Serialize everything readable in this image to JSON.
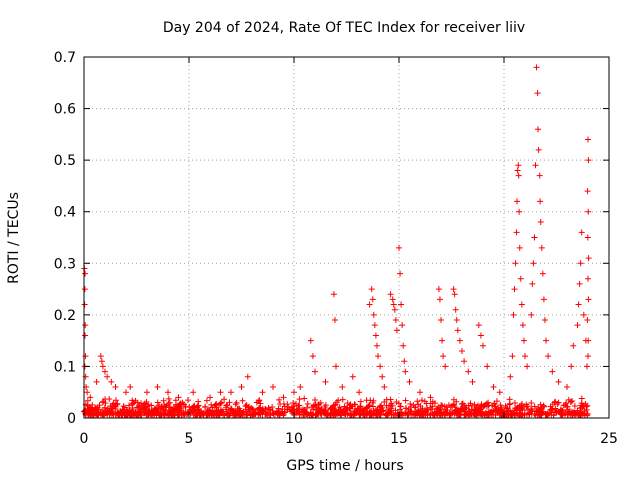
{
  "chart_data": {
    "type": "scatter",
    "title": "Day 204 of 2024, Rate Of TEC Index for receiver liiv",
    "xlabel": "GPS time / hours",
    "ylabel": "ROTI / TECUs",
    "xlim": [
      0,
      25
    ],
    "ylim": [
      0,
      0.7
    ],
    "xticks": [
      0,
      5,
      10,
      15,
      20,
      25
    ],
    "xtick_labels": [
      "0",
      "5",
      "10",
      "15",
      "20",
      "25"
    ],
    "yticks": [
      0,
      0.1,
      0.2,
      0.3,
      0.4,
      0.5,
      0.6,
      0.7
    ],
    "ytick_labels": [
      "0",
      "0.1",
      "0.2",
      "0.3",
      "0.4",
      "0.5",
      "0.6",
      "0.7"
    ],
    "grid": true,
    "marker": "+",
    "color": "#ff0000",
    "baseline": {
      "x_range": [
        0,
        24
      ],
      "y_range": [
        0.005,
        0.04
      ],
      "note": "dense background band of points"
    },
    "series": [
      {
        "name": "ROTI",
        "points": [
          [
            0.02,
            0.29
          ],
          [
            0.05,
            0.28
          ],
          [
            0.04,
            0.25
          ],
          [
            0.03,
            0.22
          ],
          [
            0.06,
            0.18
          ],
          [
            0.05,
            0.16
          ],
          [
            0.07,
            0.12
          ],
          [
            0.04,
            0.1
          ],
          [
            0.08,
            0.08
          ],
          [
            0.1,
            0.06
          ],
          [
            0.15,
            0.05
          ],
          [
            0.3,
            0.04
          ],
          [
            0.6,
            0.07
          ],
          [
            0.8,
            0.12
          ],
          [
            0.85,
            0.11
          ],
          [
            0.9,
            0.1
          ],
          [
            1.0,
            0.09
          ],
          [
            1.1,
            0.08
          ],
          [
            1.3,
            0.07
          ],
          [
            1.5,
            0.06
          ],
          [
            2.0,
            0.05
          ],
          [
            2.2,
            0.06
          ],
          [
            3.0,
            0.05
          ],
          [
            3.5,
            0.06
          ],
          [
            4.0,
            0.05
          ],
          [
            4.5,
            0.04
          ],
          [
            5.2,
            0.05
          ],
          [
            6.0,
            0.04
          ],
          [
            6.5,
            0.05
          ],
          [
            7.0,
            0.05
          ],
          [
            7.5,
            0.06
          ],
          [
            7.8,
            0.08
          ],
          [
            8.5,
            0.05
          ],
          [
            9.0,
            0.06
          ],
          [
            9.5,
            0.04
          ],
          [
            10.0,
            0.05
          ],
          [
            10.3,
            0.06
          ],
          [
            10.8,
            0.15
          ],
          [
            10.9,
            0.12
          ],
          [
            11.0,
            0.09
          ],
          [
            11.5,
            0.07
          ],
          [
            11.9,
            0.24
          ],
          [
            11.95,
            0.19
          ],
          [
            12.0,
            0.1
          ],
          [
            12.3,
            0.06
          ],
          [
            12.8,
            0.08
          ],
          [
            13.1,
            0.05
          ],
          [
            13.6,
            0.22
          ],
          [
            13.7,
            0.25
          ],
          [
            13.75,
            0.23
          ],
          [
            13.8,
            0.2
          ],
          [
            13.85,
            0.18
          ],
          [
            13.9,
            0.16
          ],
          [
            13.95,
            0.14
          ],
          [
            14.0,
            0.12
          ],
          [
            14.1,
            0.1
          ],
          [
            14.2,
            0.08
          ],
          [
            14.3,
            0.06
          ],
          [
            14.6,
            0.24
          ],
          [
            14.7,
            0.23
          ],
          [
            14.75,
            0.22
          ],
          [
            14.8,
            0.21
          ],
          [
            14.85,
            0.19
          ],
          [
            14.9,
            0.17
          ],
          [
            15.0,
            0.33
          ],
          [
            15.05,
            0.28
          ],
          [
            15.1,
            0.22
          ],
          [
            15.15,
            0.18
          ],
          [
            15.2,
            0.14
          ],
          [
            15.25,
            0.11
          ],
          [
            15.3,
            0.09
          ],
          [
            15.5,
            0.07
          ],
          [
            16.0,
            0.05
          ],
          [
            16.5,
            0.04
          ],
          [
            16.9,
            0.25
          ],
          [
            16.95,
            0.23
          ],
          [
            17.0,
            0.19
          ],
          [
            17.05,
            0.15
          ],
          [
            17.1,
            0.12
          ],
          [
            17.2,
            0.1
          ],
          [
            17.6,
            0.25
          ],
          [
            17.65,
            0.24
          ],
          [
            17.7,
            0.21
          ],
          [
            17.75,
            0.19
          ],
          [
            17.8,
            0.17
          ],
          [
            17.9,
            0.15
          ],
          [
            18.0,
            0.13
          ],
          [
            18.1,
            0.11
          ],
          [
            18.3,
            0.09
          ],
          [
            18.5,
            0.07
          ],
          [
            18.8,
            0.18
          ],
          [
            18.9,
            0.16
          ],
          [
            19.0,
            0.14
          ],
          [
            19.2,
            0.1
          ],
          [
            19.5,
            0.06
          ],
          [
            19.8,
            0.05
          ],
          [
            20.3,
            0.08
          ],
          [
            20.4,
            0.12
          ],
          [
            20.45,
            0.2
          ],
          [
            20.5,
            0.25
          ],
          [
            20.55,
            0.3
          ],
          [
            20.6,
            0.36
          ],
          [
            20.62,
            0.42
          ],
          [
            20.65,
            0.48
          ],
          [
            20.68,
            0.49
          ],
          [
            20.7,
            0.47
          ],
          [
            20.72,
            0.4
          ],
          [
            20.75,
            0.33
          ],
          [
            20.8,
            0.27
          ],
          [
            20.85,
            0.22
          ],
          [
            20.9,
            0.18
          ],
          [
            20.95,
            0.15
          ],
          [
            21.0,
            0.12
          ],
          [
            21.1,
            0.1
          ],
          [
            21.3,
            0.2
          ],
          [
            21.35,
            0.26
          ],
          [
            21.4,
            0.3
          ],
          [
            21.45,
            0.35
          ],
          [
            21.5,
            0.49
          ],
          [
            21.55,
            0.68
          ],
          [
            21.6,
            0.63
          ],
          [
            21.62,
            0.56
          ],
          [
            21.65,
            0.52
          ],
          [
            21.7,
            0.47
          ],
          [
            21.72,
            0.42
          ],
          [
            21.75,
            0.38
          ],
          [
            21.8,
            0.33
          ],
          [
            21.85,
            0.28
          ],
          [
            21.9,
            0.23
          ],
          [
            21.95,
            0.19
          ],
          [
            22.0,
            0.15
          ],
          [
            22.1,
            0.12
          ],
          [
            22.3,
            0.09
          ],
          [
            22.6,
            0.07
          ],
          [
            23.0,
            0.06
          ],
          [
            23.2,
            0.1
          ],
          [
            23.3,
            0.14
          ],
          [
            23.5,
            0.18
          ],
          [
            23.55,
            0.22
          ],
          [
            23.6,
            0.26
          ],
          [
            23.65,
            0.3
          ],
          [
            23.7,
            0.36
          ],
          [
            23.8,
            0.2
          ],
          [
            23.9,
            0.15
          ],
          [
            24.0,
            0.54
          ],
          [
            24.02,
            0.5
          ],
          [
            23.98,
            0.44
          ],
          [
            24.01,
            0.4
          ],
          [
            23.99,
            0.35
          ],
          [
            24.03,
            0.31
          ],
          [
            24.0,
            0.27
          ],
          [
            24.02,
            0.23
          ],
          [
            23.97,
            0.19
          ],
          [
            24.01,
            0.15
          ],
          [
            24.0,
            0.12
          ],
          [
            23.95,
            0.1
          ]
        ]
      }
    ]
  }
}
